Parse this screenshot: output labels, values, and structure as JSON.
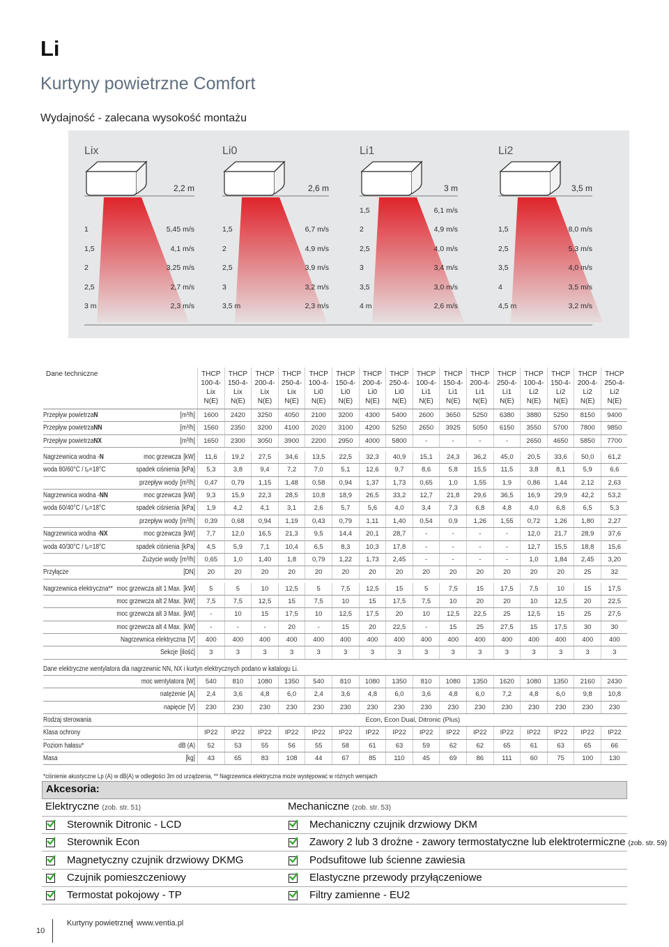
{
  "header": {
    "title": "Li",
    "subtitle": "Kurtyny powietrzne Comfort",
    "section": "Wydajność - zalecana wysokość montażu"
  },
  "performance": [
    {
      "name": "Lix",
      "height": "2,2 m",
      "rows": [
        [
          "1",
          "5,45 m/s"
        ],
        [
          "1,5",
          "4,1 m/s"
        ],
        [
          "2",
          "3,25 m/s"
        ],
        [
          "2,5",
          "2,7 m/s"
        ],
        [
          "3 m",
          "2,3 m/s"
        ]
      ]
    },
    {
      "name": "Li0",
      "height": "2,6 m",
      "rows": [
        [
          "1,5",
          "6,7 m/s"
        ],
        [
          "2",
          "4,9 m/s"
        ],
        [
          "2,5",
          "3,9 m/s"
        ],
        [
          "3",
          "3,2 m/s"
        ],
        [
          "3,5 m",
          "2,3 m/s"
        ]
      ]
    },
    {
      "name": "Li1",
      "height": "3 m",
      "rows": [
        [
          "1,5",
          "6,1 m/s"
        ],
        [
          "2",
          "4,9 m/s"
        ],
        [
          "2,5",
          "4,0 m/s"
        ],
        [
          "3",
          "3,4 m/s"
        ],
        [
          "3,5",
          "3,0 m/s"
        ],
        [
          "4 m",
          "2,6 m/s"
        ]
      ]
    },
    {
      "name": "Li2",
      "height": "3,5 m",
      "rows": [
        [
          "1,5",
          "8,0 m/s"
        ],
        [
          "2,5",
          "5,3 m/s"
        ],
        [
          "3,5",
          "4,0 m/s"
        ],
        [
          "4",
          "3,5 m/s"
        ],
        [
          "4,5 m",
          "3,2 m/s"
        ]
      ]
    }
  ],
  "table": {
    "title": "Dane techniczne",
    "columns": [
      [
        "THCP",
        "100-4-",
        "Lix",
        "N(E)"
      ],
      [
        "THCP",
        "150-4-",
        "Lix",
        "N(E)"
      ],
      [
        "THCP",
        "200-4-",
        "Lix",
        "N(E)"
      ],
      [
        "THCP",
        "250-4-",
        "Lix",
        "N(E)"
      ],
      [
        "THCP",
        "100-4-",
        "Li0",
        "N(E)"
      ],
      [
        "THCP",
        "150-4-",
        "Li0",
        "N(E)"
      ],
      [
        "THCP",
        "200-4-",
        "Li0",
        "N(E)"
      ],
      [
        "THCP",
        "250-4-",
        "Li0",
        "N(E)"
      ],
      [
        "THCP",
        "100-4-",
        "Li1",
        "N(E)"
      ],
      [
        "THCP",
        "150-4-",
        "Li1",
        "N(E)"
      ],
      [
        "THCP",
        "200-4-",
        "Li1",
        "N(E)"
      ],
      [
        "THCP",
        "250-4-",
        "Li1",
        "N(E)"
      ],
      [
        "THCP",
        "100-4-",
        "Li2",
        "N(E)"
      ],
      [
        "THCP",
        "150-4-",
        "Li2",
        "N(E)"
      ],
      [
        "THCP",
        "200-4-",
        "Li2",
        "N(E)"
      ],
      [
        "THCP",
        "250-4-",
        "Li2",
        "N(E)"
      ]
    ],
    "groups": [
      {
        "rows": [
          {
            "label": "Przepływ powietrza ",
            "bold": "N",
            "unit": "[m³/h]",
            "values": [
              "1600",
              "2420",
              "3250",
              "4050",
              "2100",
              "3200",
              "4300",
              "5400",
              "2600",
              "3650",
              "5250",
              "6380",
              "3880",
              "5250",
              "8150",
              "9400"
            ]
          },
          {
            "label": "Przepływ powietrza ",
            "bold": "NN",
            "unit": "[m³/h]",
            "values": [
              "1560",
              "2350",
              "3200",
              "4100",
              "2020",
              "3100",
              "4200",
              "5250",
              "2650",
              "3925",
              "5050",
              "6150",
              "3550",
              "5700",
              "7800",
              "9850"
            ]
          },
          {
            "label": "Przepływ powietrza ",
            "bold": "NX",
            "unit": "[m³/h]",
            "values": [
              "1650",
              "2300",
              "3050",
              "3900",
              "2200",
              "2950",
              "4000",
              "5800",
              "-",
              "-",
              "-",
              "-",
              "2650",
              "4650",
              "5850",
              "7700"
            ]
          }
        ]
      },
      {
        "rows": [
          {
            "label": "Nagrzewnica wodna - ",
            "bold": "N",
            "sub": "moc grzewcza",
            "unit": "[kW]",
            "values": [
              "11,6",
              "19,2",
              "27,5",
              "34,6",
              "13,5",
              "22,5",
              "32,3",
              "40,9",
              "15,1",
              "24,3",
              "36,2",
              "45,0",
              "20,5",
              "33,6",
              "50,0",
              "61,2"
            ]
          },
          {
            "label": "woda 80/60°C / tₚ=18°C",
            "sub": "spadek ciśnienia",
            "unit": "[kPa]",
            "values": [
              "5,3",
              "3,8",
              "9,4",
              "7,2",
              "7,0",
              "5,1",
              "12,6",
              "9,7",
              "8,6",
              "5,8",
              "15,5",
              "11,5",
              "3,8",
              "8,1",
              "5,9",
              "6,6"
            ]
          },
          {
            "sub": "przepływ wody",
            "unit": "[m³/h]",
            "values": [
              "0,47",
              "0,79",
              "1,15",
              "1,48",
              "0,58",
              "0,94",
              "1,37",
              "1,73",
              "0,65",
              "1,0",
              "1,55",
              "1,9",
              "0,86",
              "1,44",
              "2,12",
              "2,63"
            ]
          },
          {
            "label": "Nagrzewnica wodna - ",
            "bold": "NN",
            "sub": "moc grzewcza",
            "unit": "[kW]",
            "values": [
              "9,3",
              "15,9",
              "22,3",
              "28,5",
              "10,8",
              "18,9",
              "26,5",
              "33,2",
              "12,7",
              "21,8",
              "29,6",
              "36,5",
              "16,9",
              "29,9",
              "42,2",
              "53,2"
            ]
          },
          {
            "label": "woda 60/40°C / tₚ=18°C",
            "sub": "spadek ciśnienia",
            "unit": "[kPa]",
            "values": [
              "1,9",
              "4,2",
              "4,1",
              "3,1",
              "2,6",
              "5,7",
              "5,6",
              "4,0",
              "3,4",
              "7,3",
              "6,8",
              "4,8",
              "4,0",
              "6,8",
              "6,5",
              "5,3"
            ]
          },
          {
            "sub": "przepływ wody",
            "unit": "[m³/h]",
            "values": [
              "0,39",
              "0,68",
              "0,94",
              "1,19",
              "0,43",
              "0,79",
              "1,11",
              "1,40",
              "0,54",
              "0,9",
              "1,26",
              "1,55",
              "0,72",
              "1,26",
              "1,80",
              "2,27"
            ]
          },
          {
            "label": "Nagrzewnica wodna - ",
            "bold": "NX",
            "sub": "moc grzewcza",
            "unit": "[kW]",
            "values": [
              "7,7",
              "12,0",
              "16,5",
              "21,3",
              "9,5",
              "14,4",
              "20,1",
              "28,7",
              "-",
              "-",
              "-",
              "-",
              "12,0",
              "21,7",
              "28,9",
              "37,6"
            ]
          },
          {
            "label": "woda 40/30°C / tₚ=18°C",
            "sub": "spadek ciśnienia",
            "unit": "[kPa]",
            "values": [
              "4,5",
              "5,9",
              "7,1",
              "10,4",
              "6,5",
              "8,3",
              "10,3",
              "17,8",
              "-",
              "-",
              "-",
              "-",
              "12,7",
              "15,5",
              "18,8",
              "15,6"
            ]
          },
          {
            "sub": "Zużycie wody",
            "unit": "[m³/h]",
            "values": [
              "0,65",
              "1,0",
              "1,40",
              "1,8",
              "0,79",
              "1,22",
              "1,73",
              "2,45",
              "-",
              "-",
              "-",
              "-",
              "1,0",
              "1,84",
              "2,45",
              "3,20"
            ]
          },
          {
            "label": "Przyłącze",
            "unit": "[DN]",
            "values": [
              "20",
              "20",
              "20",
              "20",
              "20",
              "20",
              "20",
              "20",
              "20",
              "20",
              "20",
              "20",
              "20",
              "20",
              "25",
              "32"
            ]
          }
        ]
      },
      {
        "rows": [
          {
            "label": "Nagrzewnica elektryczna**",
            "sub": "moc grzewcza alt 1 Max.",
            "unit": "[kW]",
            "values": [
              "5",
              "5",
              "10",
              "12,5",
              "5",
              "7,5",
              "12,5",
              "15",
              "5",
              "7,5",
              "15",
              "17,5",
              "7,5",
              "10",
              "15",
              "17,5"
            ]
          },
          {
            "sub": "moc grzewcza alt 2 Max.",
            "unit": "[kW]",
            "values": [
              "7,5",
              "7,5",
              "12,5",
              "15",
              "7,5",
              "10",
              "15",
              "17,5",
              "7,5",
              "10",
              "20",
              "20",
              "10",
              "12,5",
              "20",
              "22,5"
            ]
          },
          {
            "sub": "moc grzewcza alt 3 Max.",
            "unit": "[kW]",
            "values": [
              "-",
              "10",
              "15",
              "17,5",
              "10",
              "12,5",
              "17,5",
              "20",
              "10",
              "12,5",
              "22,5",
              "25",
              "12,5",
              "15",
              "25",
              "27,5"
            ]
          },
          {
            "sub": "moc grzewcza alt 4 Max.",
            "unit": "[kW]",
            "values": [
              "-",
              "-",
              "-",
              "20",
              "-",
              "15",
              "20",
              "22,5",
              "-",
              "15",
              "25",
              "27,5",
              "15",
              "17,5",
              "30",
              "30"
            ]
          },
          {
            "sub": "Nagrzewnica elektryczna",
            "unit": "[V]",
            "values": [
              "400",
              "400",
              "400",
              "400",
              "400",
              "400",
              "400",
              "400",
              "400",
              "400",
              "400",
              "400",
              "400",
              "400",
              "400",
              "400"
            ]
          },
          {
            "sub": "Sekcje",
            "unit": "[ilość]",
            "values": [
              "3",
              "3",
              "3",
              "3",
              "3",
              "3",
              "3",
              "3",
              "3",
              "3",
              "3",
              "3",
              "3",
              "3",
              "3",
              "3"
            ]
          }
        ]
      },
      {
        "rows": [
          {
            "text": "Dane elektryczne wentylatora dla nagrzewnic NN, NX i kurtyn elektrycznych podano w katalogu Li."
          },
          {
            "sub": "moc wentylatora",
            "unit": "[W]",
            "values": [
              "540",
              "810",
              "1080",
              "1350",
              "540",
              "810",
              "1080",
              "1350",
              "810",
              "1080",
              "1350",
              "1620",
              "1080",
              "1350",
              "2160",
              "2430"
            ]
          },
          {
            "sub": "natężenie",
            "unit": "[A]",
            "values": [
              "2,4",
              "3,6",
              "4,8",
              "6,0",
              "2,4",
              "3,6",
              "4,8",
              "6,0",
              "3,6",
              "4,8",
              "6,0",
              "7,2",
              "4,8",
              "6,0",
              "9,8",
              "10,8"
            ]
          },
          {
            "sub": "napięcie",
            "unit": "[V]",
            "values": [
              "230",
              "230",
              "230",
              "230",
              "230",
              "230",
              "230",
              "230",
              "230",
              "230",
              "230",
              "230",
              "230",
              "230",
              "230",
              "230"
            ]
          },
          {
            "label": "Rodzaj sterowania",
            "span": "Econ, Econ Dual, Ditronic (Plus)"
          },
          {
            "label": "Klasa ochrony",
            "values": [
              "IP22",
              "IP22",
              "IP22",
              "IP22",
              "IP22",
              "IP22",
              "IP22",
              "IP22",
              "IP22",
              "IP22",
              "IP22",
              "IP22",
              "IP22",
              "IP22",
              "IP22",
              "IP22"
            ]
          },
          {
            "label": "Poziom hałasu*",
            "unit": "dB (A)",
            "values": [
              "52",
              "53",
              "55",
              "56",
              "55",
              "58",
              "61",
              "63",
              "59",
              "62",
              "62",
              "65",
              "61",
              "63",
              "65",
              "66"
            ]
          },
          {
            "label": "Masa",
            "unit": "[kg]",
            "values": [
              "43",
              "65",
              "83",
              "108",
              "44",
              "67",
              "85",
              "110",
              "45",
              "69",
              "86",
              "111",
              "60",
              "75",
              "100",
              "130"
            ]
          }
        ]
      }
    ],
    "footnote": "*ciśnienie akustyczne Lp (A) w dB(A) w odległości 3m od urządzenia, ** Nagrzewnica elektryczna może występować w różnych wersjach"
  },
  "accessories": {
    "title": "Akcesoria:",
    "columns": [
      {
        "title": "Elektryczne",
        "ref": "(zob. str. 51)",
        "items": [
          {
            "text": "Sterownik Ditronic - LCD"
          },
          {
            "text": "Sterownik Econ"
          },
          {
            "text": "Magnetyczny czujnik drzwiowy DKMG"
          },
          {
            "text": "Czujnik pomieszczeniowy"
          },
          {
            "text": "Termostat pokojowy - TP"
          }
        ]
      },
      {
        "title": "Mechaniczne",
        "ref": "(zob. str. 53)",
        "items": [
          {
            "text": "Mechaniczny czujnik drzwiowy DKM"
          },
          {
            "text": "Zawory 2 lub 3 drożne - zawory termostatyczne lub elektrotermiczne",
            "note": "(zob. str. 59)"
          },
          {
            "text": "Podsufitowe lub ścienne zawiesia"
          },
          {
            "text": "Elastyczne przewody przyłączeniowe"
          },
          {
            "text": "Filtry zamienne - EU2"
          }
        ]
      }
    ]
  },
  "footer": {
    "page": "10",
    "name": "Kurtyny powietrzne",
    "url": "www.ventia.pl"
  }
}
